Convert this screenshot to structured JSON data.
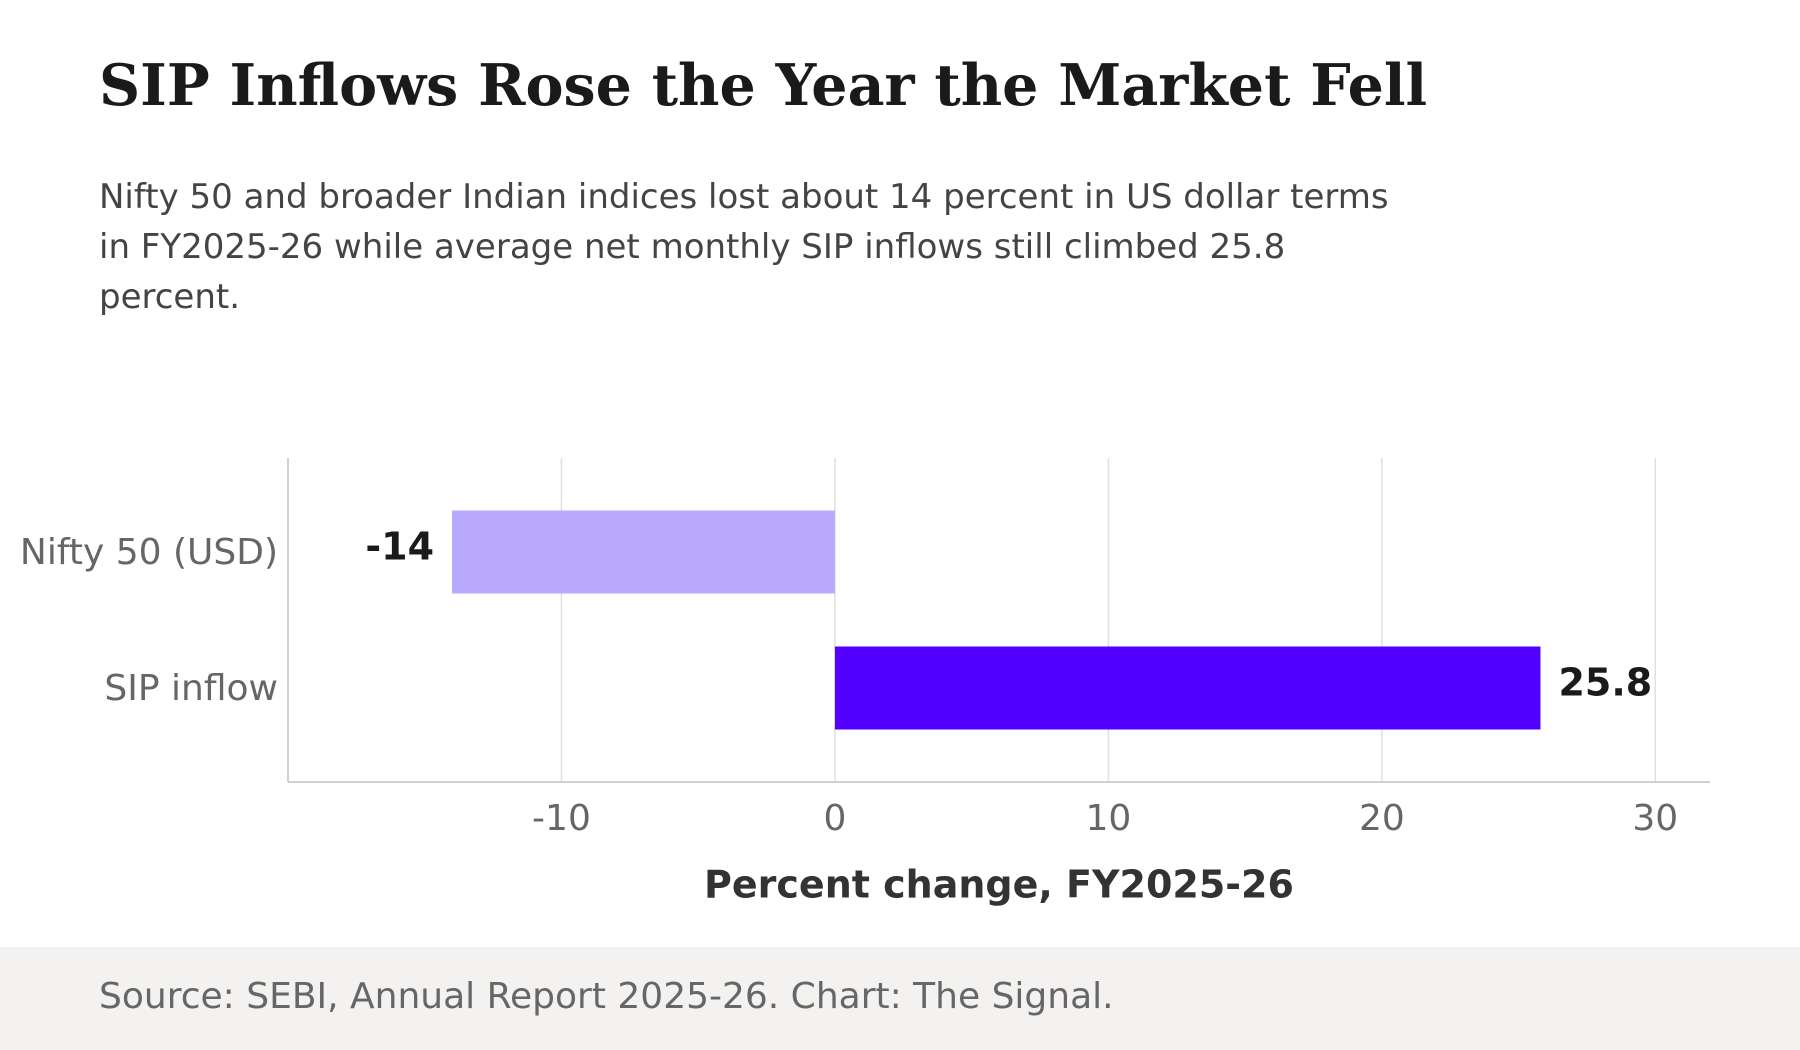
{
  "header": {
    "title": "SIP Inflows Rose the Year the Market Fell",
    "subtitle": "Nifty 50 and broader Indian indices lost about 14 percent in US dollar terms in FY2025-26 while average net monthly SIP inflows still climbed 25.8 percent."
  },
  "footer": {
    "source": "Source: SEBI, Annual Report 2025-26. Chart: The Signal."
  },
  "colors": {
    "nifty_bar": "#b8a9fc",
    "sip_bar": "#5200ff",
    "grid": "#e0e0e0",
    "axis": "#d0d0d0",
    "tick_text": "#666666",
    "value_text": "#1a1a1a",
    "xlabel_text": "#333333"
  },
  "chart_data": {
    "type": "bar",
    "orientation": "horizontal",
    "categories": [
      "Nifty 50 (USD)",
      "SIP inflow"
    ],
    "values": [
      -14,
      25.8
    ],
    "value_labels": [
      "-14",
      "25.8"
    ],
    "xlabel": "Percent change, FY2025-26",
    "xlim": [
      -20,
      32
    ],
    "xticks": [
      -10,
      0,
      10,
      20,
      30
    ],
    "grid": true,
    "legend": "none"
  }
}
